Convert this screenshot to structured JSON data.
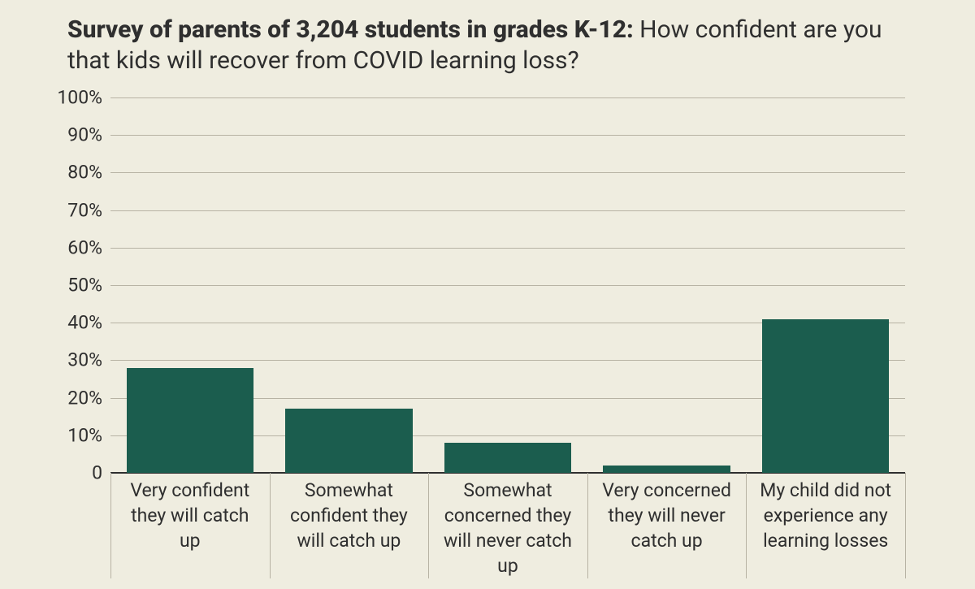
{
  "chart": {
    "type": "bar",
    "background_color": "#efede0",
    "text_color": "#2f2f2f",
    "title_bold": "Survey of parents of 3,204 students in grades K-12:",
    "title_rest": " How confident are you that kids will recover from COVID learning loss?",
    "title_fontsize": 30,
    "ylim": [
      0,
      100
    ],
    "ytick_step": 10,
    "yticks": [
      {
        "v": 0,
        "label": "0"
      },
      {
        "v": 10,
        "label": "10%"
      },
      {
        "v": 20,
        "label": "20%"
      },
      {
        "v": 30,
        "label": "30%"
      },
      {
        "v": 40,
        "label": "40%"
      },
      {
        "v": 50,
        "label": "50%"
      },
      {
        "v": 60,
        "label": "60%"
      },
      {
        "v": 70,
        "label": "70%"
      },
      {
        "v": 80,
        "label": "80%"
      },
      {
        "v": 90,
        "label": "90%"
      },
      {
        "v": 100,
        "label": "100%"
      }
    ],
    "ylabel_fontsize": 23,
    "categories": [
      "Very confident they will catch up",
      "Somewhat confident they will catch up",
      "Somewhat concerned they will never catch up",
      "Very concerned they will will never catch up",
      "My child did not experience any learning losses"
    ],
    "category_labels_display": [
      "Very confident they will catch up",
      "Somewhat confident they will catch up",
      "Somewhat concerned they will never catch up",
      "Very concerned they will never catch up",
      "My child did not experience any learning losses"
    ],
    "values": [
      28,
      17,
      8,
      2,
      41
    ],
    "bar_color": "#1b5d4e",
    "bar_width_ratio": 0.8,
    "grid_color": "#b7b3a4",
    "baseline_color": "#2f2f2f",
    "category_separator_color": "#b7b3a4",
    "category_label_fontsize": 23
  }
}
